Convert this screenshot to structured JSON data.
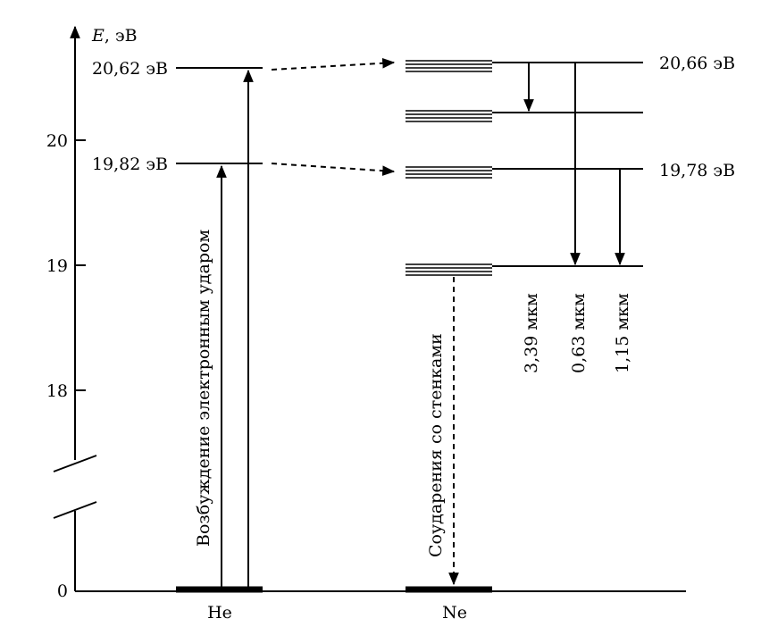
{
  "axis": {
    "label_symbol": "E",
    "label_unit": ", эВ",
    "ticks": [
      {
        "label": "20",
        "value": 20
      },
      {
        "label": "19",
        "value": 19
      },
      {
        "label": "18",
        "value": 18
      },
      {
        "label": "0",
        "value": 0
      }
    ]
  },
  "he": {
    "label": "He",
    "level_upper": "20,62 эВ",
    "level_lower": "19,82 эВ",
    "excitation_caption": "Возбуждение электронным ударом"
  },
  "ne": {
    "label": "Ne",
    "level_upper": "20,66 эВ",
    "level_lower": "19,78 эВ",
    "wall_collision_caption": "Соударения со стенками"
  },
  "transitions": [
    {
      "label": "3,39 мкм"
    },
    {
      "label": "0,63 мкм"
    },
    {
      "label": "1,15 мкм"
    }
  ]
}
